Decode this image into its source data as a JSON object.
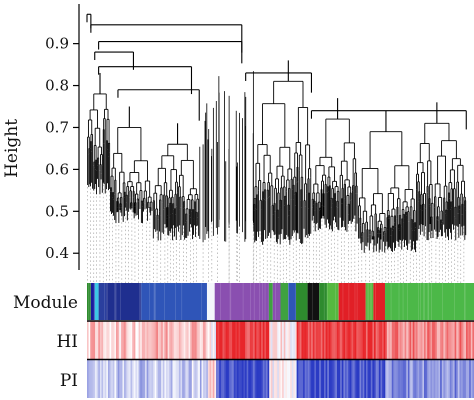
{
  "chart_data": {
    "type": "dendrogram",
    "ylabel": "Height",
    "ylim": [
      0.36,
      0.985
    ],
    "yticks": [
      {
        "value": 0.9,
        "label": "0.9"
      },
      {
        "value": 0.8,
        "label": "0.8"
      },
      {
        "value": 0.7,
        "label": "0.7"
      },
      {
        "value": 0.6,
        "label": "0.6"
      },
      {
        "value": 0.5,
        "label": "0.5"
      },
      {
        "value": 0.4,
        "label": "0.4"
      }
    ],
    "root_height": 0.97,
    "major_merges": [
      {
        "height": 0.97,
        "span": [
          0.0,
          0.01
        ]
      },
      {
        "height": 0.945,
        "span": [
          0.01,
          0.4
        ]
      },
      {
        "height": 0.905,
        "span": [
          0.03,
          0.4
        ]
      },
      {
        "height": 0.88,
        "span": [
          0.02,
          0.12
        ]
      },
      {
        "height": 0.845,
        "span": [
          0.03,
          0.27
        ]
      },
      {
        "height": 0.83,
        "span": [
          0.41,
          0.58
        ]
      },
      {
        "height": 0.79,
        "span": [
          0.08,
          0.29
        ]
      },
      {
        "height": 0.74,
        "span": [
          0.58,
          0.98
        ]
      }
    ],
    "clusters": [
      {
        "span": [
          0.0,
          0.06
        ],
        "top": 0.78,
        "bottom": 0.54
      },
      {
        "span": [
          0.06,
          0.17
        ],
        "top": 0.7,
        "bottom": 0.47
      },
      {
        "span": [
          0.17,
          0.29
        ],
        "top": 0.66,
        "bottom": 0.43
      },
      {
        "span": [
          0.43,
          0.58
        ],
        "top": 0.81,
        "bottom": 0.42
      },
      {
        "span": [
          0.58,
          0.7
        ],
        "top": 0.72,
        "bottom": 0.45
      },
      {
        "span": [
          0.7,
          0.85
        ],
        "top": 0.69,
        "bottom": 0.4
      },
      {
        "span": [
          0.85,
          0.98
        ],
        "top": 0.71,
        "bottom": 0.43
      }
    ],
    "module_row": {
      "label": "Module",
      "segments": [
        {
          "from": 0.0,
          "to": 0.01,
          "color": "#2e8b2e"
        },
        {
          "from": 0.01,
          "to": 0.02,
          "color": "#1a1aa0"
        },
        {
          "from": 0.02,
          "to": 0.03,
          "color": "#3cc8e6"
        },
        {
          "from": 0.03,
          "to": 0.05,
          "color": "#2a3f9e"
        },
        {
          "from": 0.05,
          "to": 0.14,
          "color": "#1f2f8f"
        },
        {
          "from": 0.14,
          "to": 0.31,
          "color": "#2f55b8"
        },
        {
          "from": 0.31,
          "to": 0.33,
          "color": "#f4f6fb"
        },
        {
          "from": 0.33,
          "to": 0.47,
          "color": "#8a4fb0"
        },
        {
          "from": 0.47,
          "to": 0.48,
          "color": "#3fa23f"
        },
        {
          "from": 0.48,
          "to": 0.5,
          "color": "#8a4fb0"
        },
        {
          "from": 0.5,
          "to": 0.52,
          "color": "#3fa23f"
        },
        {
          "from": 0.52,
          "to": 0.54,
          "color": "#2f55b8"
        },
        {
          "from": 0.54,
          "to": 0.57,
          "color": "#2e8b2e"
        },
        {
          "from": 0.57,
          "to": 0.6,
          "color": "#111111"
        },
        {
          "from": 0.6,
          "to": 0.62,
          "color": "#2e8b2e"
        },
        {
          "from": 0.62,
          "to": 0.65,
          "color": "#55b840"
        },
        {
          "from": 0.65,
          "to": 0.72,
          "color": "#e11f26"
        },
        {
          "from": 0.72,
          "to": 0.74,
          "color": "#55b840"
        },
        {
          "from": 0.74,
          "to": 0.77,
          "color": "#e11f26"
        },
        {
          "from": 0.77,
          "to": 1.0,
          "color": "#4cb848"
        }
      ]
    },
    "heat_rows": [
      {
        "label": "HI",
        "low_color": "#2b3bc4",
        "mid_color": "#ffffff",
        "high_color": "#e8262a",
        "profile": [
          {
            "from": 0.0,
            "to": 0.14,
            "level": 0.25
          },
          {
            "from": 0.14,
            "to": 0.31,
            "level": 0.35
          },
          {
            "from": 0.31,
            "to": 0.33,
            "level": 0.05
          },
          {
            "from": 0.33,
            "to": 0.47,
            "level": 0.92
          },
          {
            "from": 0.47,
            "to": 0.54,
            "level": 0.1
          },
          {
            "from": 0.54,
            "to": 0.77,
            "level": 0.9
          },
          {
            "from": 0.77,
            "to": 1.0,
            "level": 0.55
          }
        ]
      },
      {
        "label": "PI",
        "low_color": "#2b3bc4",
        "mid_color": "#ffffff",
        "high_color": "#e8262a",
        "profile": [
          {
            "from": 0.0,
            "to": 0.14,
            "level": -0.3
          },
          {
            "from": 0.14,
            "to": 0.31,
            "level": -0.25
          },
          {
            "from": 0.31,
            "to": 0.33,
            "level": 0.15
          },
          {
            "from": 0.33,
            "to": 0.47,
            "level": -0.92
          },
          {
            "from": 0.47,
            "to": 0.54,
            "level": 0.0
          },
          {
            "from": 0.54,
            "to": 0.77,
            "level": -0.88
          },
          {
            "from": 0.77,
            "to": 1.0,
            "level": -0.55
          }
        ]
      }
    ]
  }
}
